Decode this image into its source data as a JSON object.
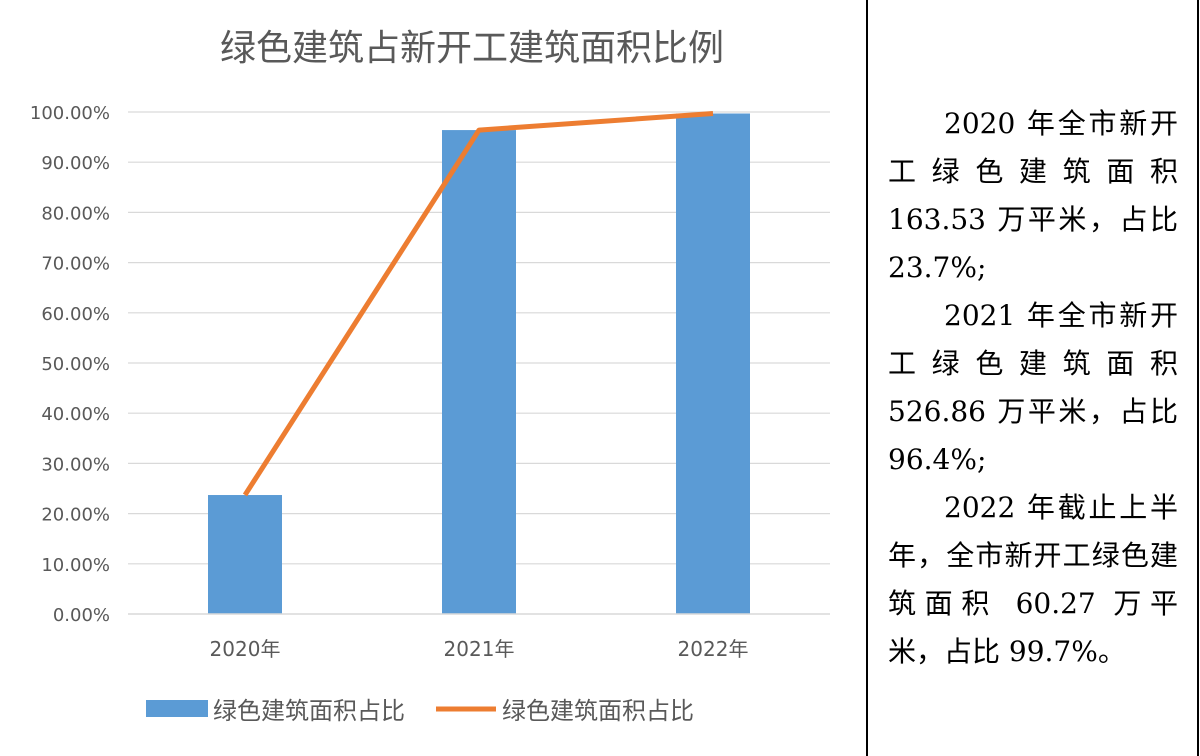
{
  "colors": {
    "bar": "#5b9bd5",
    "line": "#ed7d31",
    "grid": "#d9d9d9",
    "axis_text": "#595959",
    "title_text": "#595959"
  },
  "chart_data": {
    "type": "bar",
    "title": "绿色建筑占新开工建筑面积比例",
    "categories": [
      "2020年",
      "2021年",
      "2022年"
    ],
    "y_tick_labels": [
      "0.00%",
      "10.00%",
      "20.00%",
      "30.00%",
      "40.00%",
      "50.00%",
      "60.00%",
      "70.00%",
      "80.00%",
      "90.00%",
      "100.00%"
    ],
    "ylim": [
      0,
      100
    ],
    "grid": true,
    "legend_position": "bottom",
    "series": [
      {
        "name": "绿色建筑面积占比",
        "type": "bar",
        "values": [
          23.7,
          96.4,
          99.7
        ]
      },
      {
        "name": "绿色建筑面积占比",
        "type": "line",
        "values": [
          23.7,
          96.4,
          99.7
        ]
      }
    ]
  },
  "side_text": {
    "paragraphs": [
      "2020 年全市新开工绿色建筑面积 163.53 万平米，占比 23.7%;",
      "2021 年全市新开工绿色建筑面积 526.86 万平米，占比 96.4%;",
      "2022 年截止上半年，全市新开工绿色建筑面积 60.27 万平米，占比 99.7%。"
    ]
  }
}
